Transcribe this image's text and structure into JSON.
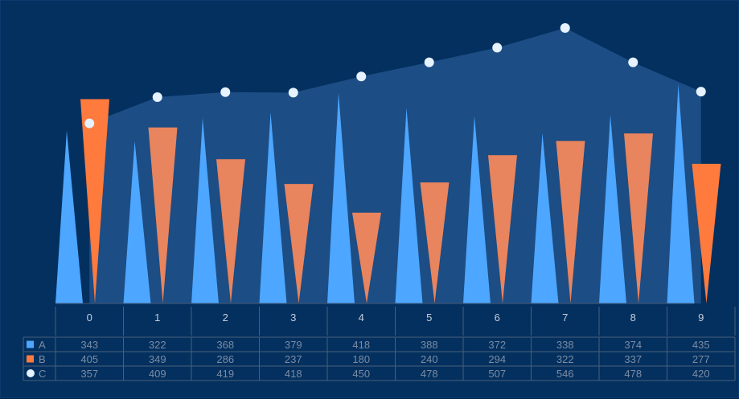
{
  "chart_data": {
    "type": "bar",
    "categories": [
      "0",
      "1",
      "2",
      "3",
      "4",
      "5",
      "6",
      "7",
      "8",
      "9"
    ],
    "series": [
      {
        "name": "A",
        "kind": "spike",
        "color": "#4da6ff",
        "values": [
          343,
          322,
          368,
          379,
          418,
          388,
          372,
          338,
          374,
          435
        ]
      },
      {
        "name": "B",
        "kind": "inverted-spike",
        "color": "#e8845e",
        "values": [
          405,
          349,
          286,
          237,
          180,
          240,
          294,
          322,
          337,
          277
        ]
      },
      {
        "name": "C",
        "kind": "area-line",
        "color": "#e6f2ff",
        "values": [
          357,
          409,
          419,
          418,
          450,
          478,
          507,
          546,
          478,
          420
        ]
      }
    ],
    "ylim": [
      0,
      600
    ],
    "grid": false,
    "legend": "data-table",
    "colors": {
      "background": "#03305f",
      "area": "#1d4f86",
      "highlight_b": "#ff7a3d"
    }
  }
}
